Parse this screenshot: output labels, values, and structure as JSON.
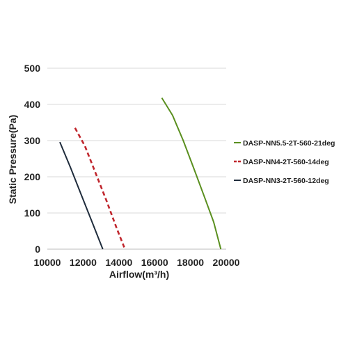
{
  "chart_data": {
    "type": "line",
    "title": "",
    "xlabel": "Airflow(m³/h)",
    "ylabel": "Static Pressure(Pa)",
    "xlim": [
      10000,
      20000
    ],
    "ylim": [
      0,
      500
    ],
    "xticks": [
      "10000",
      "12000",
      "14000",
      "16000",
      "18000",
      "20000"
    ],
    "yticks": [
      "0",
      "100",
      "200",
      "300",
      "400",
      "500"
    ],
    "grid": "horizontal",
    "legend_position": "right",
    "series": [
      {
        "name": "DASP-NN5.5-2T-560-21deg",
        "color": "#5a8f1f",
        "style": "solid",
        "x": [
          16400,
          17000,
          17600,
          18200,
          18800,
          19300,
          19700
        ],
        "y": [
          418,
          370,
          300,
          222,
          142,
          75,
          0
        ]
      },
      {
        "name": "DASP-NN4-2T-560-14deg",
        "color": "#c0262d",
        "style": "dashed",
        "x": [
          11550,
          12100,
          12700,
          13300,
          13900,
          14300
        ],
        "y": [
          335,
          285,
          210,
          135,
          55,
          5
        ]
      },
      {
        "name": "DASP-NN3-2T-560-12deg",
        "color": "#1f2c3c",
        "style": "solid",
        "x": [
          10700,
          11300,
          11900,
          12500,
          13100
        ],
        "y": [
          296,
          225,
          150,
          75,
          0
        ]
      }
    ]
  }
}
